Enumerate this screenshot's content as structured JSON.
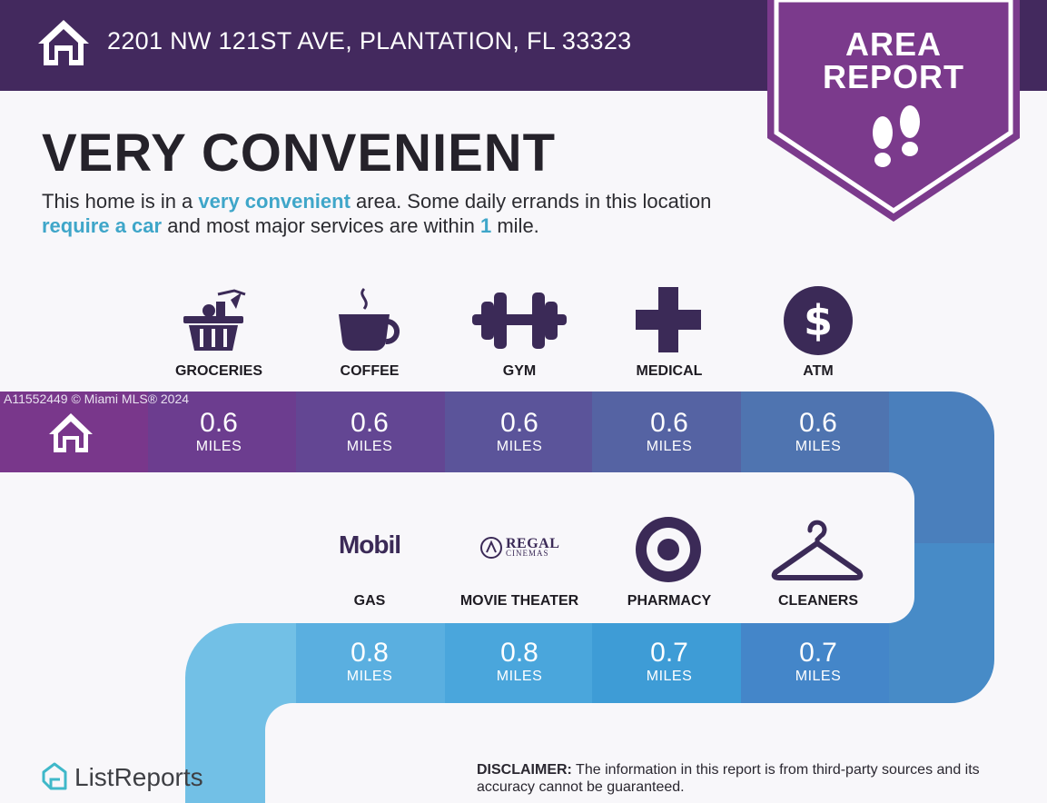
{
  "header": {
    "address": "2201 NW 121ST AVE, PLANTATION, FL 33323",
    "badge_line1": "AREA",
    "badge_line2": "REPORT"
  },
  "headline": "VERY CONVENIENT",
  "description": {
    "p1": "This home is in a ",
    "h1": "very convenient",
    "p2": " area. Some daily errands in this location ",
    "h2": "require a car",
    "p3": " and most major services are within ",
    "h3": "1",
    "p4": " mile."
  },
  "watermark": "A11552449 © Miami MLS® 2024",
  "row1": [
    {
      "label": "GROCERIES",
      "icon": "grocery-basket-icon",
      "distance": "0.6",
      "unit": "MILES"
    },
    {
      "label": "COFFEE",
      "icon": "coffee-cup-icon",
      "distance": "0.6",
      "unit": "MILES"
    },
    {
      "label": "GYM",
      "icon": "dumbbell-icon",
      "distance": "0.6",
      "unit": "MILES"
    },
    {
      "label": "MEDICAL",
      "icon": "medical-cross-icon",
      "distance": "0.6",
      "unit": "MILES"
    },
    {
      "label": "ATM",
      "icon": "dollar-icon",
      "distance": "0.6",
      "unit": "MILES"
    }
  ],
  "row2": [
    {
      "label": "GAS",
      "logo_text": "Mobil",
      "distance": "0.8",
      "unit": "MILES"
    },
    {
      "label": "MOVIE THEATER",
      "logo_text_1": "REGAL",
      "logo_text_2": "CINEMAS",
      "distance": "0.8",
      "unit": "MILES"
    },
    {
      "label": "PHARMACY",
      "icon": "target-icon",
      "distance": "0.7",
      "unit": "MILES"
    },
    {
      "label": "CLEANERS",
      "icon": "hanger-icon",
      "distance": "0.7",
      "unit": "MILES"
    }
  ],
  "footer": {
    "brand": "ListReports",
    "disclaimer_label": "DISCLAIMER:",
    "disclaimer_text": " The information in this report is from third-party sources and its accuracy cannot be guaranteed."
  },
  "colors": {
    "header_bg": "#43295e",
    "badge": "#7b3a8c",
    "highlight": "#3fa6c9",
    "icon": "#3b2a57"
  }
}
